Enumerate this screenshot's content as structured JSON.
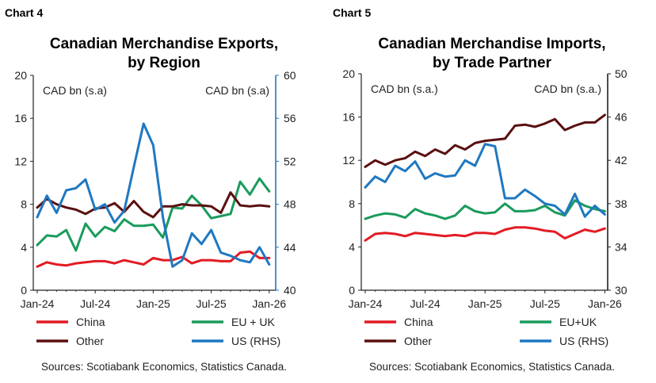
{
  "colors": {
    "china": "#e31b23",
    "eu": "#1a9b5c",
    "other": "#5a1010",
    "us": "#1f78c1"
  },
  "chart_data": [
    {
      "type": "line",
      "chart_label": "Chart 4",
      "title_lines": [
        "Canadian Merchandise Exports,",
        "by Region"
      ],
      "left_unit": "CAD bn (s.a)",
      "right_unit": "CAD bn (s.a)",
      "ylim_left": [
        0,
        20
      ],
      "ylim_right": [
        40,
        60
      ],
      "yticks_left": [
        "0",
        "4",
        "8",
        "12",
        "16",
        "20"
      ],
      "yticks_right": [
        "40",
        "44",
        "48",
        "52",
        "56",
        "60"
      ],
      "xticks": [
        "Jan-24",
        "Jul-24",
        "Jan-25",
        "Jul-25",
        "Jan-26"
      ],
      "right_axis_color": "#1f78c1",
      "source": "Sources: Scotiabank Economics, Statistics Canada.",
      "series": [
        {
          "name": "China",
          "key": "china",
          "axis": "left",
          "values": [
            2.2,
            2.6,
            2.4,
            2.3,
            2.5,
            2.6,
            2.7,
            2.7,
            2.5,
            2.8,
            2.6,
            2.4,
            3.0,
            2.8,
            2.8,
            3.1,
            2.5,
            2.8,
            2.8,
            2.7,
            2.7,
            3.5,
            3.6,
            3.0,
            3.0
          ]
        },
        {
          "name": "EU + UK",
          "key": "eu",
          "axis": "left",
          "values": [
            4.2,
            5.1,
            5.0,
            5.6,
            3.7,
            6.2,
            5.0,
            5.9,
            5.5,
            6.6,
            6.0,
            6.0,
            6.1,
            4.9,
            7.7,
            7.6,
            8.8,
            7.9,
            6.7,
            6.9,
            7.1,
            10.1,
            8.9,
            10.4,
            9.2
          ]
        },
        {
          "name": "Other",
          "key": "other",
          "axis": "left",
          "values": [
            7.7,
            8.5,
            8.0,
            7.7,
            7.5,
            7.1,
            7.6,
            7.7,
            8.1,
            7.3,
            8.3,
            7.3,
            6.8,
            7.8,
            7.8,
            8.0,
            7.9,
            7.9,
            7.8,
            7.2,
            9.1,
            7.9,
            7.8,
            7.9,
            7.8
          ]
        },
        {
          "name": "US (RHS)",
          "key": "us",
          "axis": "right",
          "values": [
            46.8,
            48.8,
            47.2,
            49.3,
            49.5,
            50.3,
            47.5,
            48.0,
            46.3,
            47.4,
            51.5,
            55.5,
            53.5,
            46.8,
            42.2,
            42.8,
            45.3,
            44.3,
            45.6,
            43.5,
            43.2,
            42.8,
            42.6,
            44.0,
            42.4
          ]
        }
      ],
      "legend": [
        {
          "label": "China",
          "key": "china"
        },
        {
          "label": "EU + UK",
          "key": "eu"
        },
        {
          "label": "Other",
          "key": "other"
        },
        {
          "label": "US (RHS)",
          "key": "us"
        }
      ]
    },
    {
      "type": "line",
      "chart_label": "Chart 5",
      "title_lines": [
        "Canadian Merchandise Imports,",
        "by Trade Partner"
      ],
      "left_unit": "CAD bn (s.a.)",
      "right_unit": "CAD bn (s.a.)",
      "ylim_left": [
        0,
        20
      ],
      "ylim_right": [
        30,
        50
      ],
      "yticks_left": [
        "0",
        "4",
        "8",
        "12",
        "16",
        "20"
      ],
      "yticks_right": [
        "30",
        "34",
        "38",
        "42",
        "46",
        "50"
      ],
      "xticks": [
        "Jan-24",
        "Jul-24",
        "Jan-25",
        "Jul-25",
        "Jan-26"
      ],
      "right_axis_color": "#222222",
      "source": "Sources: Scotiabank Economics, Statistics Canada.",
      "series": [
        {
          "name": "China",
          "key": "china",
          "axis": "left",
          "values": [
            4.6,
            5.2,
            5.3,
            5.2,
            5.0,
            5.3,
            5.2,
            5.1,
            5.0,
            5.1,
            5.0,
            5.3,
            5.3,
            5.2,
            5.6,
            5.8,
            5.8,
            5.7,
            5.5,
            5.4,
            4.8,
            5.2,
            5.6,
            5.4,
            5.7
          ]
        },
        {
          "name": "EU+UK",
          "key": "eu",
          "axis": "left",
          "values": [
            6.6,
            6.9,
            7.1,
            7.0,
            6.7,
            7.5,
            7.1,
            6.9,
            6.6,
            6.9,
            7.8,
            7.3,
            7.1,
            7.2,
            8.0,
            7.3,
            7.3,
            7.4,
            7.8,
            7.2,
            6.9,
            8.3,
            7.8,
            7.5,
            7.3
          ]
        },
        {
          "name": "Other",
          "key": "other",
          "axis": "left",
          "values": [
            11.4,
            12.0,
            11.6,
            12.0,
            12.2,
            12.8,
            12.4,
            13.0,
            12.6,
            13.4,
            13.0,
            13.6,
            13.8,
            13.9,
            14.0,
            15.2,
            15.3,
            15.1,
            15.4,
            15.8,
            14.8,
            15.2,
            15.5,
            15.5,
            16.2
          ]
        },
        {
          "name": "US (RHS)",
          "key": "us",
          "axis": "right",
          "values": [
            39.5,
            40.5,
            40.0,
            41.5,
            41.0,
            41.9,
            40.3,
            40.8,
            40.5,
            40.6,
            42.0,
            41.5,
            43.5,
            43.3,
            38.5,
            38.5,
            39.3,
            38.7,
            38.0,
            37.8,
            37.0,
            38.9,
            36.8,
            37.8,
            37.0
          ]
        }
      ],
      "legend": [
        {
          "label": "China",
          "key": "china"
        },
        {
          "label": "EU+UK",
          "key": "eu"
        },
        {
          "label": "Other",
          "key": "other"
        },
        {
          "label": "US (RHS)",
          "key": "us"
        }
      ]
    }
  ]
}
